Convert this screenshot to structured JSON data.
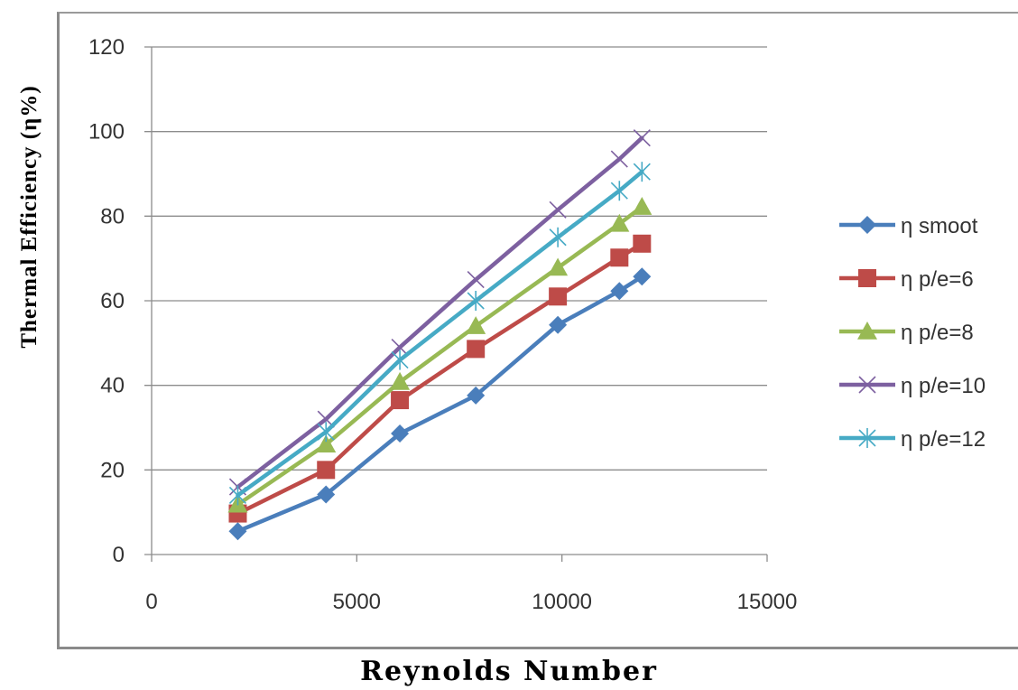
{
  "chart_data": {
    "type": "line",
    "title": "",
    "xlabel": "Reynolds Number",
    "ylabel": "Thermal Efficiency (η%)",
    "xlim": [
      0,
      15000
    ],
    "ylim": [
      0,
      120
    ],
    "x_ticks": [
      "0",
      "5000",
      "10000",
      "15000"
    ],
    "y_ticks": [
      "0",
      "20",
      "40",
      "60",
      "80",
      "100",
      "120"
    ],
    "grid": "horizontal",
    "legend_position": "right",
    "series": [
      {
        "name": "η smoot",
        "color": "#4a7ebb",
        "marker": "diamond",
        "x": [
          2100,
          4250,
          6050,
          7900,
          9900,
          11400,
          11950
        ],
        "y": [
          5.5,
          14.2,
          28.6,
          37.6,
          54.3,
          62.3,
          65.7
        ]
      },
      {
        "name": "η p/e=6",
        "color": "#be4b48",
        "marker": "square",
        "x": [
          2100,
          4250,
          6050,
          7900,
          9900,
          11400,
          11950
        ],
        "y": [
          9.7,
          20.0,
          36.5,
          48.6,
          61.0,
          70.2,
          73.5
        ]
      },
      {
        "name": "η p/e=8",
        "color": "#98b954",
        "marker": "triangle",
        "x": [
          2100,
          4250,
          6050,
          7900,
          9900,
          11400,
          11950
        ],
        "y": [
          11.8,
          26.0,
          40.8,
          54.0,
          67.8,
          78.2,
          82.2
        ]
      },
      {
        "name": "η p/e=10",
        "color": "#7d60a0",
        "marker": "x",
        "x": [
          2100,
          4250,
          6050,
          7900,
          9900,
          11400,
          11950
        ],
        "y": [
          16.0,
          32.0,
          49.0,
          65.0,
          81.5,
          93.5,
          98.5
        ]
      },
      {
        "name": "η p/e=12",
        "color": "#46aac5",
        "marker": "asterisk",
        "x": [
          2100,
          4250,
          6050,
          7900,
          9900,
          11400,
          11950
        ],
        "y": [
          14.0,
          29.0,
          46.0,
          60.0,
          75.0,
          86.0,
          90.5
        ]
      }
    ]
  }
}
